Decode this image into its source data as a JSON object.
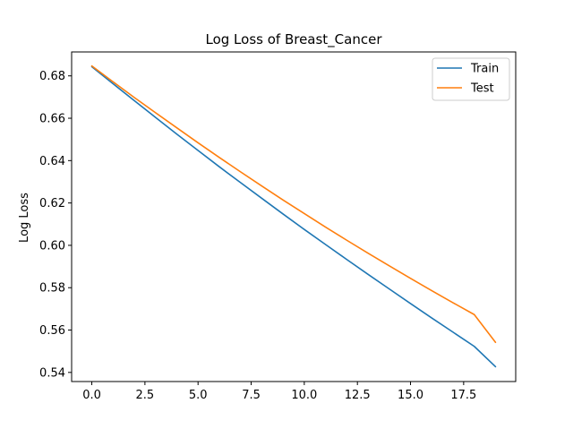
{
  "chart_data": {
    "type": "line",
    "title": "Log Loss of Breast_Cancer",
    "xlabel": "",
    "ylabel": "Log Loss",
    "xlim": [
      -0.95,
      19.95
    ],
    "ylim": [
      0.5357,
      0.6913
    ],
    "xticks": [
      0.0,
      2.5,
      5.0,
      7.5,
      10.0,
      12.5,
      15.0,
      17.5
    ],
    "xtick_labels": [
      "0.0",
      "2.5",
      "5.0",
      "7.5",
      "10.0",
      "12.5",
      "15.0",
      "17.5"
    ],
    "yticks": [
      0.54,
      0.56,
      0.58,
      0.6,
      0.62,
      0.64,
      0.66,
      0.68
    ],
    "ytick_labels": [
      "0.54",
      "0.56",
      "0.58",
      "0.60",
      "0.62",
      "0.64",
      "0.66",
      "0.68"
    ],
    "grid": false,
    "legend": "top-right",
    "x": [
      0,
      1,
      2,
      3,
      4,
      5,
      6,
      7,
      8,
      9,
      10,
      11,
      12,
      13,
      14,
      15,
      16,
      17,
      18,
      19
    ],
    "series": [
      {
        "name": "Train",
        "color": "#1f77b4",
        "values": [
          0.6843,
          0.6763,
          0.6683,
          0.6604,
          0.6525,
          0.6448,
          0.6371,
          0.6296,
          0.6222,
          0.6148,
          0.6075,
          0.6004,
          0.5933,
          0.5863,
          0.5794,
          0.5725,
          0.5657,
          0.559,
          0.5523,
          0.5427
        ]
      },
      {
        "name": "Test",
        "color": "#ff7f0e",
        "values": [
          0.6847,
          0.6772,
          0.6698,
          0.6626,
          0.6555,
          0.6484,
          0.6415,
          0.6347,
          0.628,
          0.6214,
          0.615,
          0.6086,
          0.6024,
          0.5963,
          0.5903,
          0.5844,
          0.5786,
          0.5729,
          0.5673,
          0.5542
        ]
      }
    ]
  }
}
